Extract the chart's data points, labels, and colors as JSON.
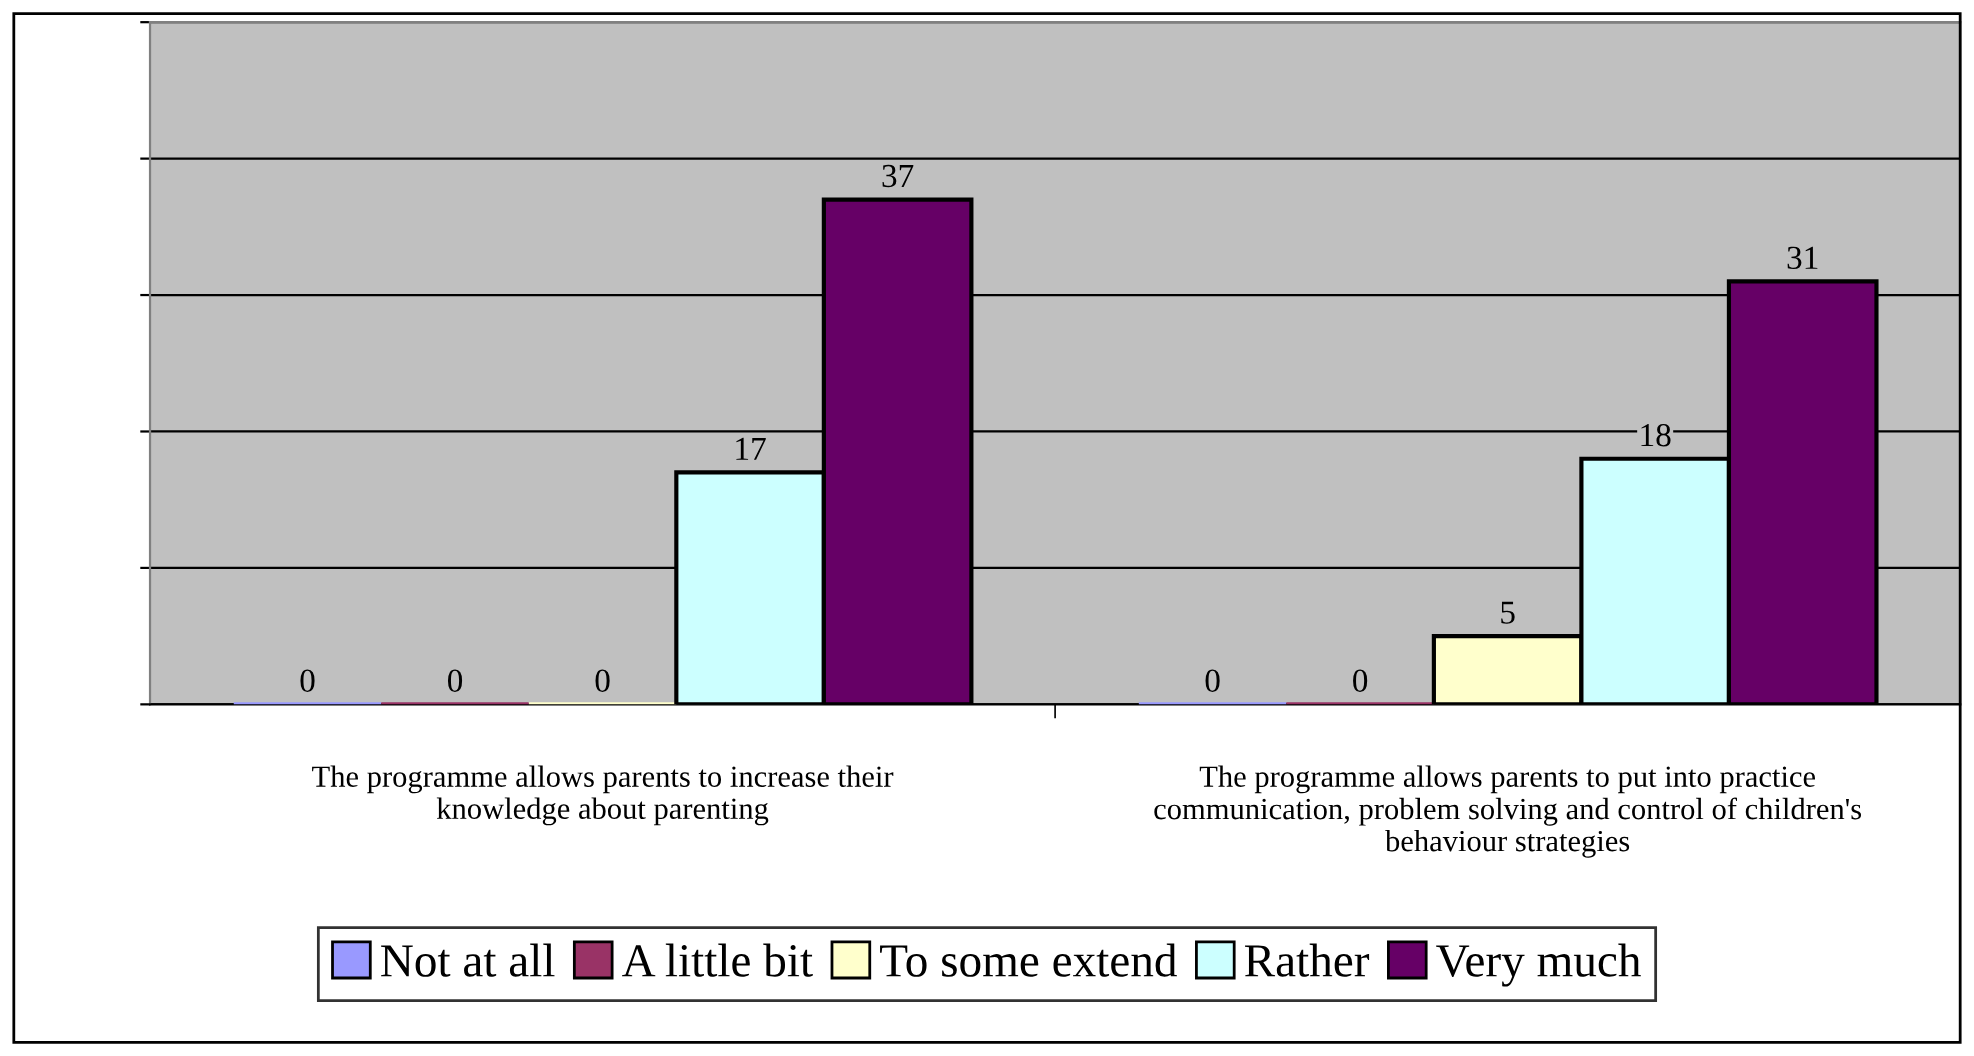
{
  "chart_data": {
    "type": "bar",
    "categories": [
      "The programme allows parents to increase their\nknowledge about parenting",
      "The programme allows parents to put into practice\ncommunication, problem solving and control of children's\nbehaviour strategies"
    ],
    "series": [
      {
        "name": "Not at all",
        "color": "#9999ff",
        "values": [
          0,
          0
        ]
      },
      {
        "name": "A little bit",
        "color": "#993366",
        "values": [
          0,
          0
        ]
      },
      {
        "name": "To some extend",
        "color": "#ffffcc",
        "values": [
          0,
          5
        ]
      },
      {
        "name": "Rather",
        "color": "#ccffff",
        "values": [
          17,
          18
        ]
      },
      {
        "name": "Very much",
        "color": "#660066",
        "values": [
          37,
          31
        ]
      }
    ],
    "ylim": [
      0,
      50
    ],
    "yticks": [
      {
        "value": 0,
        "label": null
      },
      {
        "value": 10,
        "label": null
      },
      {
        "value": 20,
        "label": null
      },
      {
        "value": 30,
        "label": null
      },
      {
        "value": 40,
        "label": null
      },
      {
        "value": 50,
        "label": null
      }
    ],
    "tick_labels": "x",
    "grid": "y",
    "legend": "bottom",
    "data_labels": true
  }
}
